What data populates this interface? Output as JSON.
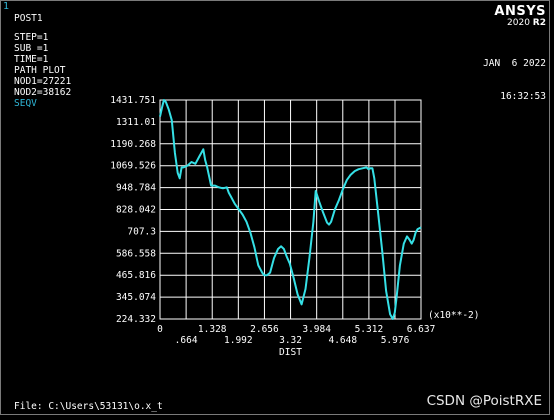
{
  "window_number": "1",
  "info_lines": [
    "POST1",
    "STEP=1",
    "SUB =1",
    "TIME=1",
    "PATH PLOT",
    "NOD1=27221",
    "NOD2=38162"
  ],
  "result_label": "SEQV",
  "brand": {
    "name": "ANSYS",
    "version": "2020",
    "release": "R2"
  },
  "date": "JAN  6 2022",
  "time": "16:32:53",
  "file_line": "File: C:\\Users\\53131\\o.x_t",
  "watermark": "CSDN @PoistRXE",
  "colors": {
    "background": "#000000",
    "curve": "#35e0e6",
    "accent": "#2fb7d8",
    "grid": "#ffffff"
  },
  "chart_data": {
    "type": "line",
    "xlabel": "DIST",
    "x_multiplier": "(x10**-2)",
    "xlim": [
      0,
      6.637
    ],
    "ylim": [
      224.332,
      1431.751
    ],
    "x_ticks_top": [
      "0",
      "1.328",
      "2.656",
      "3.984",
      "5.312",
      "6.637"
    ],
    "x_ticks_bottom": [
      ".664",
      "1.992",
      "3.32",
      "4.648",
      "5.976"
    ],
    "x_tick_values_top": [
      0,
      1.328,
      2.656,
      3.984,
      5.312,
      6.637
    ],
    "x_tick_values_bottom": [
      0.664,
      1.992,
      3.32,
      4.648,
      5.976
    ],
    "y_ticks": [
      "1431.751",
      "1311.01",
      "1190.268",
      "1069.526",
      "948.784",
      "828.042",
      "707.3",
      "586.558",
      "465.816",
      "345.074",
      "224.332"
    ],
    "y_tick_values": [
      1431.751,
      1311.01,
      1190.268,
      1069.526,
      948.784,
      828.042,
      707.3,
      586.558,
      465.816,
      345.074,
      224.332
    ],
    "grid": true,
    "series": [
      {
        "x": [
          0,
          0.05,
          0.1,
          0.15,
          0.22,
          0.3,
          0.38,
          0.45,
          0.5,
          0.55,
          0.6,
          0.7,
          0.8,
          0.9,
          1.0,
          1.1,
          1.15,
          1.2,
          1.3,
          1.4,
          1.5,
          1.6,
          1.7,
          1.75,
          1.8,
          1.9,
          2.0,
          2.1,
          2.2,
          2.3,
          2.4,
          2.5,
          2.6,
          2.65,
          2.72,
          2.8,
          2.9,
          3.0,
          3.08,
          3.15,
          3.22,
          3.3,
          3.4,
          3.5,
          3.6,
          3.7,
          3.8,
          3.9,
          3.96,
          4.05,
          4.15,
          4.25,
          4.3,
          4.35,
          4.45,
          4.55,
          4.65,
          4.75,
          4.85,
          4.95,
          5.05,
          5.15,
          5.25,
          5.3,
          5.35,
          5.4,
          5.45,
          5.55,
          5.65,
          5.75,
          5.85,
          5.92,
          5.97,
          6.02,
          6.1,
          6.2,
          6.28,
          6.35,
          6.4,
          6.45,
          6.5,
          6.55,
          6.6,
          6.637
        ],
        "y": [
          1340,
          1390,
          1431.751,
          1420,
          1380,
          1320,
          1140,
          1030,
          1000,
          1060,
          1060,
          1070,
          1090,
          1080,
          1120,
          1160,
          1100,
          1060,
          960,
          960,
          950,
          945,
          950,
          920,
          900,
          860,
          830,
          800,
          760,
          700,
          620,
          520,
          480,
          465,
          465,
          480,
          560,
          610,
          625,
          610,
          570,
          530,
          450,
          360,
          305,
          390,
          560,
          760,
          930,
          870,
          810,
          755,
          745,
          760,
          830,
          880,
          940,
          990,
          1020,
          1040,
          1050,
          1055,
          1060,
          1050,
          1055,
          1055,
          1000,
          800,
          600,
          380,
          250,
          224.332,
          260,
          350,
          520,
          640,
          680,
          660,
          640,
          660,
          700,
          720,
          725,
          730
        ]
      }
    ]
  }
}
